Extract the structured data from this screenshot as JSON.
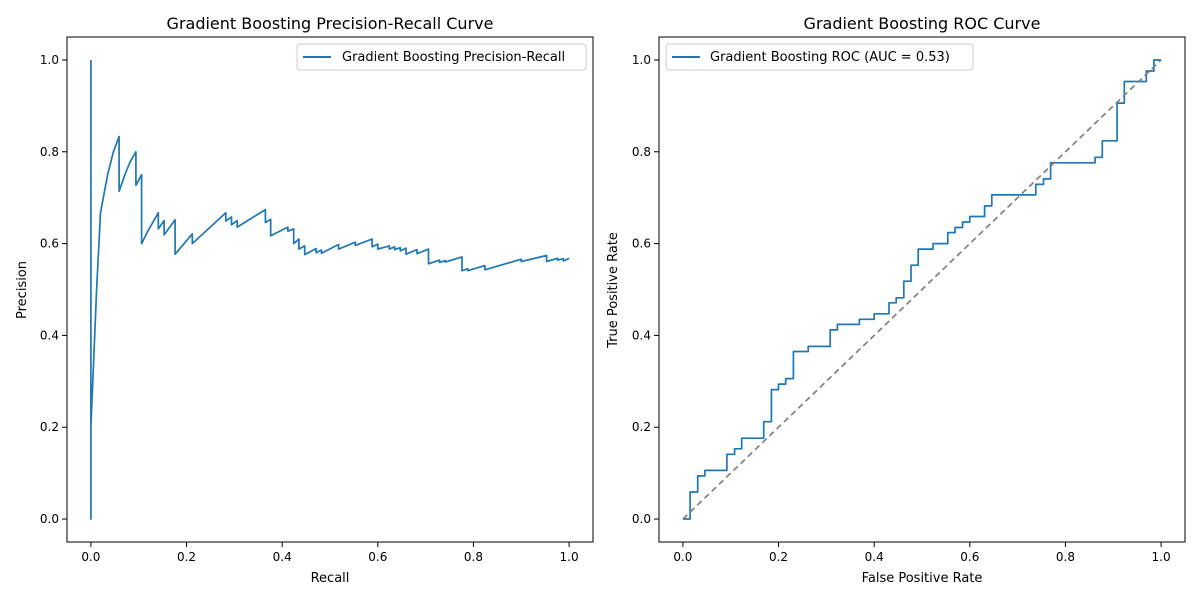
{
  "chart_data": [
    {
      "type": "line",
      "title": "Gradient Boosting Precision-Recall Curve",
      "xlabel": "Recall",
      "ylabel": "Precision",
      "xlim": [
        -0.05,
        1.05
      ],
      "ylim": [
        -0.05,
        1.05
      ],
      "xticks": [
        "0.0",
        "0.2",
        "0.4",
        "0.6",
        "0.8",
        "1.0"
      ],
      "yticks": [
        "0.0",
        "0.2",
        "0.4",
        "0.6",
        "0.8",
        "1.0"
      ],
      "grid": false,
      "legend": {
        "position": "upper-right"
      },
      "series": [
        {
          "name": "Gradient Boosting Precision-Recall",
          "color": "#1f77b4",
          "x": [
            0.0,
            0.0,
            0.0,
            0.012,
            0.02,
            0.035,
            0.047,
            0.059,
            0.059,
            0.071,
            0.082,
            0.094,
            0.094,
            0.106,
            0.106,
            0.118,
            0.141,
            0.141,
            0.153,
            0.153,
            0.176,
            0.176,
            0.212,
            0.212,
            0.282,
            0.282,
            0.294,
            0.294,
            0.306,
            0.306,
            0.365,
            0.365,
            0.376,
            0.376,
            0.412,
            0.412,
            0.424,
            0.424,
            0.435,
            0.435,
            0.447,
            0.447,
            0.471,
            0.471,
            0.482,
            0.482,
            0.518,
            0.518,
            0.553,
            0.553,
            0.588,
            0.588,
            0.6,
            0.6,
            0.624,
            0.624,
            0.635,
            0.635,
            0.647,
            0.647,
            0.659,
            0.659,
            0.682,
            0.682,
            0.706,
            0.706,
            0.729,
            0.729,
            0.741,
            0.741,
            0.776,
            0.776,
            0.788,
            0.788,
            0.824,
            0.824,
            0.9,
            0.9,
            0.953,
            0.953,
            0.976,
            0.976,
            0.988,
            0.988,
            1.0
          ],
          "y": [
            1.0,
            0.0,
            0.2,
            0.5,
            0.667,
            0.75,
            0.8,
            0.833,
            0.714,
            0.75,
            0.778,
            0.8,
            0.727,
            0.75,
            0.6,
            0.625,
            0.667,
            0.632,
            0.65,
            0.619,
            0.652,
            0.577,
            0.621,
            0.6,
            0.667,
            0.649,
            0.658,
            0.641,
            0.65,
            0.636,
            0.674,
            0.646,
            0.653,
            0.617,
            0.636,
            0.627,
            0.632,
            0.6,
            0.61,
            0.588,
            0.595,
            0.576,
            0.589,
            0.58,
            0.586,
            0.579,
            0.598,
            0.588,
            0.603,
            0.596,
            0.61,
            0.593,
            0.599,
            0.588,
            0.595,
            0.588,
            0.593,
            0.587,
            0.591,
            0.584,
            0.59,
            0.577,
            0.587,
            0.578,
            0.588,
            0.556,
            0.564,
            0.559,
            0.563,
            0.56,
            0.571,
            0.541,
            0.545,
            0.541,
            0.552,
            0.543,
            0.566,
            0.561,
            0.574,
            0.561,
            0.568,
            0.564,
            0.567,
            0.562,
            0.568
          ]
        }
      ]
    },
    {
      "type": "line",
      "title": "Gradient Boosting ROC Curve",
      "xlabel": "False Positive Rate",
      "ylabel": "True Positive Rate",
      "xlim": [
        -0.05,
        1.05
      ],
      "ylim": [
        -0.05,
        1.05
      ],
      "xticks": [
        "0.0",
        "0.2",
        "0.4",
        "0.6",
        "0.8",
        "1.0"
      ],
      "yticks": [
        "0.0",
        "0.2",
        "0.4",
        "0.6",
        "0.8",
        "1.0"
      ],
      "grid": false,
      "legend": {
        "position": "upper-left"
      },
      "series": [
        {
          "name": "Gradient Boosting ROC (AUC = 0.53)",
          "color": "#1f77b4",
          "x": [
            0.0,
            0.015,
            0.015,
            0.031,
            0.031,
            0.046,
            0.046,
            0.092,
            0.092,
            0.108,
            0.108,
            0.123,
            0.123,
            0.169,
            0.169,
            0.185,
            0.185,
            0.2,
            0.2,
            0.215,
            0.215,
            0.231,
            0.231,
            0.262,
            0.262,
            0.308,
            0.308,
            0.323,
            0.323,
            0.369,
            0.369,
            0.4,
            0.4,
            0.431,
            0.431,
            0.446,
            0.446,
            0.462,
            0.462,
            0.477,
            0.477,
            0.492,
            0.492,
            0.523,
            0.523,
            0.554,
            0.554,
            0.569,
            0.569,
            0.585,
            0.585,
            0.6,
            0.6,
            0.631,
            0.631,
            0.646,
            0.646,
            0.692,
            0.692,
            0.738,
            0.738,
            0.754,
            0.754,
            0.769,
            0.769,
            0.862,
            0.862,
            0.877,
            0.877,
            0.908,
            0.908,
            0.923,
            0.923,
            0.969,
            0.969,
            0.985,
            0.985,
            1.0
          ],
          "y": [
            0.0,
            0.0,
            0.059,
            0.059,
            0.094,
            0.094,
            0.106,
            0.106,
            0.141,
            0.141,
            0.153,
            0.153,
            0.176,
            0.176,
            0.212,
            0.212,
            0.282,
            0.282,
            0.294,
            0.294,
            0.306,
            0.306,
            0.365,
            0.365,
            0.376,
            0.376,
            0.412,
            0.412,
            0.424,
            0.424,
            0.435,
            0.435,
            0.447,
            0.447,
            0.471,
            0.471,
            0.482,
            0.482,
            0.518,
            0.518,
            0.553,
            0.553,
            0.588,
            0.588,
            0.6,
            0.6,
            0.624,
            0.624,
            0.635,
            0.635,
            0.647,
            0.647,
            0.659,
            0.659,
            0.682,
            0.682,
            0.706,
            0.706,
            0.706,
            0.706,
            0.729,
            0.729,
            0.741,
            0.741,
            0.776,
            0.776,
            0.788,
            0.788,
            0.824,
            0.824,
            0.906,
            0.906,
            0.953,
            0.953,
            0.976,
            0.976,
            1.0,
            1.0
          ]
        },
        {
          "name": "",
          "color": "#808080",
          "dash": true,
          "x": [
            0.0,
            1.0
          ],
          "y": [
            0.0,
            1.0
          ]
        }
      ]
    }
  ]
}
